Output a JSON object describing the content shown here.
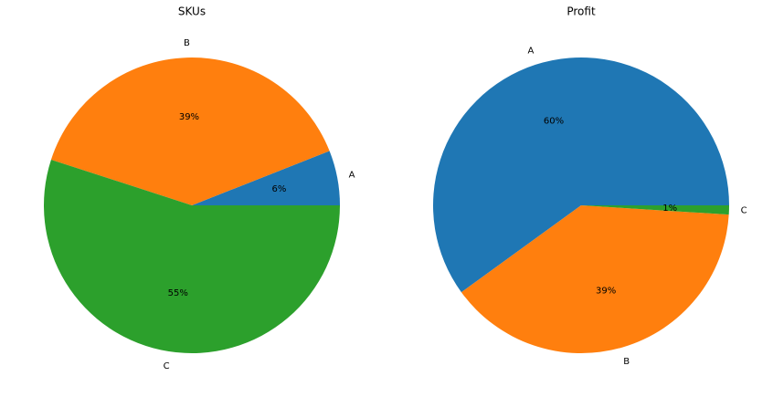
{
  "chart_data": [
    {
      "type": "pie",
      "title": "SKUs",
      "categories": [
        "A",
        "B",
        "C"
      ],
      "values": [
        6,
        39,
        55
      ],
      "value_labels": [
        "6%",
        "39%",
        "55%"
      ],
      "colors": [
        "#1f77b4",
        "#ff7f0e",
        "#2ca02c"
      ]
    },
    {
      "type": "pie",
      "title": "Profit",
      "categories": [
        "A",
        "B",
        "C"
      ],
      "values": [
        60,
        39,
        1
      ],
      "value_labels": [
        "60%",
        "39%",
        "1%"
      ],
      "colors": [
        "#1f77b4",
        "#ff7f0e",
        "#2ca02c"
      ]
    }
  ]
}
